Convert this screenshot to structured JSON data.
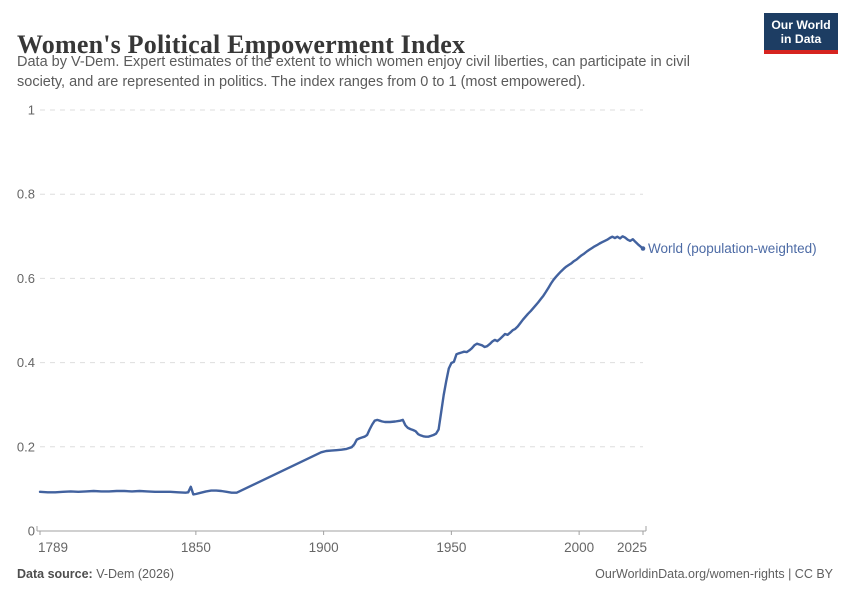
{
  "header": {
    "title": "Women's Political Empowerment Index",
    "subtitle_line1": "Data by V-Dem. Expert estimates of the extent to which women enjoy civil liberties, can participate in civil",
    "subtitle_line2": "society, and are represented in politics. The index ranges from 0 to 1 (most empowered).",
    "logo": {
      "line1": "Our World",
      "line2": "in Data"
    }
  },
  "footer": {
    "source_label": "Data source:",
    "source_value": " V-Dem (2026)",
    "rights": "OurWorldinData.org/women-rights | CC BY"
  },
  "colors": {
    "line": "#42629f",
    "series_label": "#4d6ba5",
    "logo_bg": "#1d3d63",
    "logo_accent": "#d62420",
    "grid": "#dedede",
    "axis": "#a1a1a1",
    "tick_text": "#666666"
  },
  "chart_data": {
    "type": "line",
    "title": "Women's Political Empowerment Index",
    "xlabel": "",
    "ylabel": "",
    "x_range": [
      1789,
      2025
    ],
    "ylim": [
      0,
      1
    ],
    "x_ticks": [
      1789,
      1850,
      1900,
      1950,
      2000,
      2025
    ],
    "x_tick_labels": [
      "1789",
      "1850",
      "1900",
      "1950",
      "2000",
      "2025"
    ],
    "y_ticks": [
      0,
      0.2,
      0.4,
      0.6,
      0.8,
      1
    ],
    "y_tick_labels": [
      "0",
      "0.2",
      "0.4",
      "0.6",
      "0.8",
      "1"
    ],
    "grid": "horizontal-dashed",
    "legend_position": "end-of-line-label",
    "series": [
      {
        "name": "World (population-weighted)",
        "color": "#42629f",
        "points": [
          [
            1789,
            0.093
          ],
          [
            1792,
            0.092
          ],
          [
            1795,
            0.092
          ],
          [
            1798,
            0.093
          ],
          [
            1801,
            0.094
          ],
          [
            1804,
            0.093
          ],
          [
            1807,
            0.094
          ],
          [
            1810,
            0.095
          ],
          [
            1813,
            0.094
          ],
          [
            1816,
            0.094
          ],
          [
            1819,
            0.095
          ],
          [
            1822,
            0.095
          ],
          [
            1825,
            0.094
          ],
          [
            1828,
            0.095
          ],
          [
            1831,
            0.094
          ],
          [
            1834,
            0.093
          ],
          [
            1837,
            0.093
          ],
          [
            1840,
            0.093
          ],
          [
            1843,
            0.092
          ],
          [
            1846,
            0.091
          ],
          [
            1847,
            0.092
          ],
          [
            1848,
            0.105
          ],
          [
            1849,
            0.087
          ],
          [
            1850,
            0.088
          ],
          [
            1852,
            0.091
          ],
          [
            1854,
            0.094
          ],
          [
            1856,
            0.096
          ],
          [
            1858,
            0.096
          ],
          [
            1860,
            0.095
          ],
          [
            1862,
            0.093
          ],
          [
            1864,
            0.091
          ],
          [
            1866,
            0.091
          ],
          [
            1899,
            0.187
          ],
          [
            1901,
            0.19
          ],
          [
            1903,
            0.191
          ],
          [
            1905,
            0.192
          ],
          [
            1907,
            0.193
          ],
          [
            1909,
            0.195
          ],
          [
            1911,
            0.199
          ],
          [
            1912,
            0.206
          ],
          [
            1913,
            0.217
          ],
          [
            1914,
            0.22
          ],
          [
            1915,
            0.222
          ],
          [
            1916,
            0.224
          ],
          [
            1917,
            0.228
          ],
          [
            1918,
            0.241
          ],
          [
            1919,
            0.253
          ],
          [
            1920,
            0.262
          ],
          [
            1921,
            0.264
          ],
          [
            1922,
            0.262
          ],
          [
            1923,
            0.26
          ],
          [
            1924,
            0.259
          ],
          [
            1926,
            0.259
          ],
          [
            1928,
            0.26
          ],
          [
            1930,
            0.262
          ],
          [
            1931,
            0.264
          ],
          [
            1932,
            0.251
          ],
          [
            1933,
            0.245
          ],
          [
            1934,
            0.242
          ],
          [
            1935,
            0.24
          ],
          [
            1936,
            0.237
          ],
          [
            1937,
            0.23
          ],
          [
            1938,
            0.227
          ],
          [
            1939,
            0.225
          ],
          [
            1940,
            0.224
          ],
          [
            1941,
            0.224
          ],
          [
            1942,
            0.226
          ],
          [
            1943,
            0.228
          ],
          [
            1944,
            0.231
          ],
          [
            1945,
            0.241
          ],
          [
            1946,
            0.281
          ],
          [
            1947,
            0.323
          ],
          [
            1948,
            0.357
          ],
          [
            1949,
            0.386
          ],
          [
            1950,
            0.399
          ],
          [
            1951,
            0.402
          ],
          [
            1952,
            0.42
          ],
          [
            1953,
            0.422
          ],
          [
            1954,
            0.424
          ],
          [
            1955,
            0.426
          ],
          [
            1956,
            0.425
          ],
          [
            1957,
            0.429
          ],
          [
            1958,
            0.434
          ],
          [
            1959,
            0.441
          ],
          [
            1960,
            0.445
          ],
          [
            1961,
            0.443
          ],
          [
            1962,
            0.441
          ],
          [
            1963,
            0.437
          ],
          [
            1964,
            0.439
          ],
          [
            1965,
            0.444
          ],
          [
            1966,
            0.45
          ],
          [
            1967,
            0.454
          ],
          [
            1968,
            0.451
          ],
          [
            1969,
            0.456
          ],
          [
            1970,
            0.462
          ],
          [
            1971,
            0.468
          ],
          [
            1972,
            0.466
          ],
          [
            1973,
            0.471
          ],
          [
            1974,
            0.477
          ],
          [
            1975,
            0.48
          ],
          [
            1976,
            0.486
          ],
          [
            1977,
            0.494
          ],
          [
            1978,
            0.502
          ],
          [
            1979,
            0.509
          ],
          [
            1980,
            0.516
          ],
          [
            1981,
            0.522
          ],
          [
            1982,
            0.529
          ],
          [
            1983,
            0.536
          ],
          [
            1984,
            0.543
          ],
          [
            1985,
            0.551
          ],
          [
            1986,
            0.559
          ],
          [
            1987,
            0.568
          ],
          [
            1988,
            0.578
          ],
          [
            1989,
            0.588
          ],
          [
            1990,
            0.597
          ],
          [
            1991,
            0.604
          ],
          [
            1992,
            0.611
          ],
          [
            1993,
            0.617
          ],
          [
            1994,
            0.623
          ],
          [
            1995,
            0.628
          ],
          [
            1996,
            0.632
          ],
          [
            1997,
            0.636
          ],
          [
            1998,
            0.641
          ],
          [
            1999,
            0.645
          ],
          [
            2000,
            0.65
          ],
          [
            2001,
            0.655
          ],
          [
            2002,
            0.659
          ],
          [
            2003,
            0.664
          ],
          [
            2004,
            0.668
          ],
          [
            2005,
            0.672
          ],
          [
            2006,
            0.676
          ],
          [
            2007,
            0.679
          ],
          [
            2008,
            0.683
          ],
          [
            2009,
            0.686
          ],
          [
            2010,
            0.689
          ],
          [
            2011,
            0.692
          ],
          [
            2012,
            0.696
          ],
          [
            2013,
            0.699
          ],
          [
            2014,
            0.696
          ],
          [
            2015,
            0.699
          ],
          [
            2016,
            0.695
          ],
          [
            2017,
            0.7
          ],
          [
            2018,
            0.697
          ],
          [
            2019,
            0.692
          ],
          [
            2020,
            0.689
          ],
          [
            2021,
            0.693
          ],
          [
            2022,
            0.687
          ],
          [
            2023,
            0.681
          ],
          [
            2024,
            0.676
          ],
          [
            2025,
            0.671
          ]
        ]
      }
    ]
  }
}
